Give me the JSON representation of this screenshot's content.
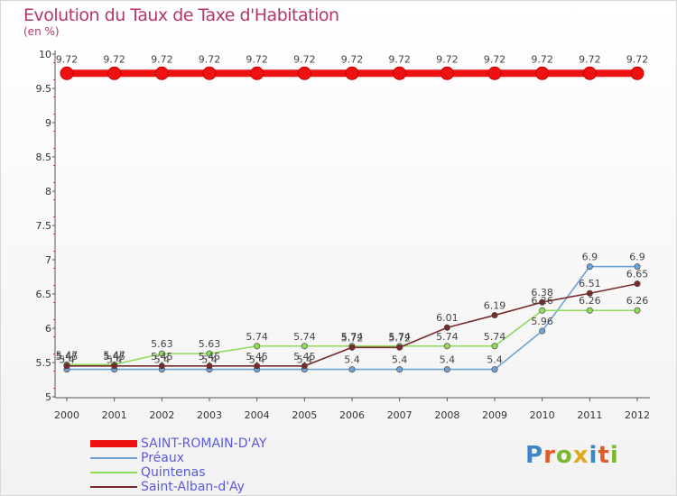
{
  "header": {
    "title": "Evolution du Taux de Taxe d'Habitation",
    "subtitle": "(en %)"
  },
  "brand": {
    "name": "Proxiti",
    "letters": [
      "P",
      "r",
      "o",
      "x",
      "i",
      "t",
      "i"
    ],
    "letter_colors": [
      "#3d86c6",
      "#e05a2a",
      "#7cb82f",
      "#e0a820",
      "#3d86c6",
      "#e05a2a",
      "#7cb82f"
    ]
  },
  "chart_data": {
    "type": "line",
    "title": "Evolution du Taux de Taxe d'Habitation",
    "ylabel": "(en %)",
    "xlabel": "",
    "ylim": [
      5,
      10
    ],
    "yticks": [
      5,
      5.5,
      6,
      6.5,
      7,
      7.5,
      8,
      8.5,
      9,
      9.5,
      10
    ],
    "categories": [
      "2000",
      "2001",
      "2002",
      "2003",
      "2004",
      "2005",
      "2006",
      "2007",
      "2008",
      "2009",
      "2010",
      "2011",
      "2012"
    ],
    "grid": false,
    "legend_position": "bottom-left",
    "series": [
      {
        "name": "SAINT-ROMAIN-D'AY",
        "color": "#ee1111",
        "thick": true,
        "values": [
          9.72,
          9.72,
          9.72,
          9.72,
          9.72,
          9.72,
          9.72,
          9.72,
          9.72,
          9.72,
          9.72,
          9.72,
          9.72
        ]
      },
      {
        "name": "Préaux",
        "color": "#6fa3d8",
        "thick": false,
        "values": [
          5.4,
          5.4,
          5.4,
          5.4,
          5.4,
          5.4,
          5.4,
          5.4,
          5.4,
          5.4,
          5.96,
          6.9,
          6.9
        ]
      },
      {
        "name": "Quintenas",
        "color": "#8fdb5a",
        "thick": false,
        "values": [
          5.47,
          5.47,
          5.63,
          5.63,
          5.74,
          5.74,
          5.74,
          5.74,
          5.74,
          5.74,
          6.26,
          6.26,
          6.26
        ]
      },
      {
        "name": "Saint-Alban-d'Ay",
        "color": "#7a2a2a",
        "thick": false,
        "values": [
          5.45,
          5.45,
          5.45,
          5.45,
          5.45,
          5.45,
          5.72,
          5.72,
          6.01,
          6.19,
          6.38,
          6.51,
          6.65
        ]
      }
    ]
  }
}
